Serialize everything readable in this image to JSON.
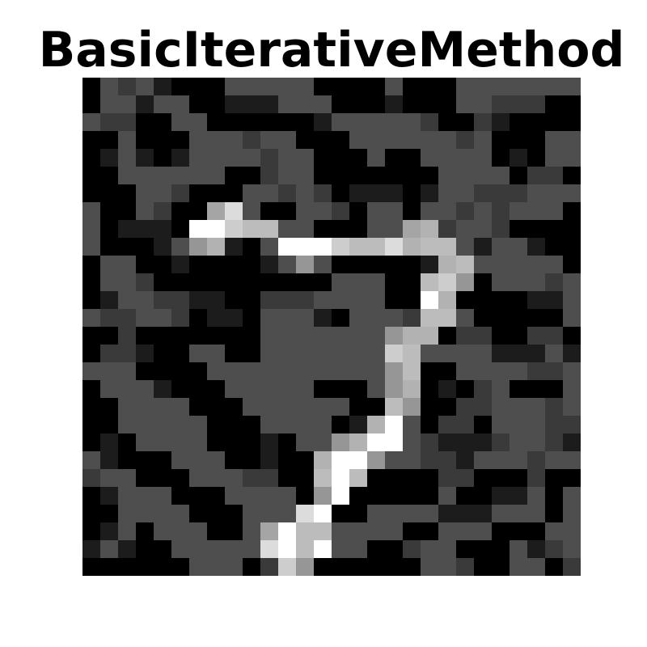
{
  "title": "BasicIterativeMethod",
  "image": {
    "rows": 28,
    "cols": 28,
    "pixels": [
      [
        0,
        4,
        3,
        4,
        1,
        0,
        0,
        0,
        4,
        4,
        4,
        4,
        4,
        0,
        0,
        0,
        0,
        4,
        0,
        0,
        0,
        4,
        4,
        4,
        4,
        4,
        4,
        4
      ],
      [
        0,
        4,
        4,
        1,
        4,
        4,
        0,
        0,
        1,
        1,
        1,
        4,
        4,
        4,
        0,
        0,
        0,
        1,
        0,
        0,
        0,
        4,
        4,
        3,
        3,
        3,
        0,
        0
      ],
      [
        4,
        3,
        3,
        0,
        0,
        4,
        4,
        0,
        0,
        0,
        0,
        0,
        0,
        1,
        4,
        4,
        4,
        4,
        4,
        3,
        0,
        0,
        3,
        1,
        0,
        0,
        0,
        0
      ],
      [
        0,
        0,
        4,
        0,
        0,
        0,
        4,
        4,
        4,
        3,
        4,
        4,
        0,
        0,
        0,
        4,
        4,
        4,
        4,
        4,
        4,
        3,
        4,
        0,
        0,
        0,
        4,
        4
      ],
      [
        0,
        1,
        4,
        1,
        0,
        1,
        4,
        4,
        4,
        4,
        3,
        4,
        4,
        0,
        0,
        0,
        4,
        0,
        0,
        4,
        4,
        4,
        4,
        0,
        1,
        0,
        4,
        4
      ],
      [
        0,
        0,
        4,
        4,
        4,
        4,
        4,
        4,
        0,
        0,
        3,
        4,
        4,
        0,
        0,
        0,
        0,
        0,
        0,
        0,
        4,
        4,
        4,
        4,
        0,
        3,
        3,
        0
      ],
      [
        0,
        0,
        0,
        4,
        4,
        3,
        0,
        0,
        0,
        4,
        4,
        3,
        4,
        3,
        0,
        1,
        1,
        1,
        0,
        1,
        4,
        4,
        3,
        3,
        3,
        4,
        4,
        4
      ],
      [
        4,
        0,
        0,
        4,
        3,
        0,
        0,
        9,
        13,
        4,
        0,
        0,
        4,
        4,
        3,
        0,
        4,
        4,
        0,
        4,
        4,
        3,
        4,
        3,
        4,
        4,
        4,
        0
      ],
      [
        4,
        0,
        1,
        1,
        1,
        0,
        15,
        15,
        12,
        11,
        11,
        4,
        4,
        0,
        0,
        0,
        4,
        4,
        9,
        10,
        3,
        4,
        4,
        3,
        0,
        0,
        0,
        0
      ],
      [
        4,
        0,
        0,
        0,
        1,
        4,
        8,
        10,
        1,
        0,
        4,
        15,
        15,
        15,
        12,
        11,
        11,
        13,
        10,
        11,
        11,
        4,
        1,
        4,
        4,
        1,
        0,
        0
      ],
      [
        0,
        4,
        4,
        0,
        0,
        1,
        0,
        0,
        0,
        0,
        1,
        4,
        8,
        4,
        0,
        0,
        0,
        0,
        0,
        1,
        10,
        11,
        4,
        4,
        4,
        4,
        4,
        0
      ],
      [
        0,
        4,
        4,
        3,
        0,
        0,
        0,
        0,
        0,
        0,
        0,
        0,
        0,
        0,
        4,
        4,
        4,
        0,
        0,
        11,
        12,
        8,
        0,
        4,
        4,
        4,
        3,
        4
      ],
      [
        0,
        1,
        4,
        4,
        3,
        3,
        1,
        1,
        0,
        0,
        3,
        3,
        3,
        4,
        4,
        4,
        4,
        0,
        0,
        15,
        10,
        0,
        0,
        0,
        0,
        1,
        1,
        4
      ],
      [
        4,
        3,
        3,
        4,
        4,
        3,
        0,
        1,
        1,
        0,
        4,
        4,
        4,
        1,
        0,
        4,
        4,
        4,
        3,
        11,
        11,
        4,
        0,
        0,
        0,
        0,
        0,
        4
      ],
      [
        0,
        0,
        3,
        0,
        0,
        0,
        0,
        0,
        0,
        0,
        4,
        4,
        4,
        4,
        4,
        4,
        4,
        8,
        10,
        10,
        0,
        3,
        3,
        0,
        0,
        3,
        3,
        0
      ],
      [
        0,
        3,
        3,
        1,
        0,
        0,
        4,
        4,
        0,
        0,
        4,
        4,
        4,
        4,
        4,
        4,
        4,
        12,
        11,
        4,
        4,
        4,
        4,
        1,
        1,
        1,
        4,
        1
      ],
      [
        4,
        4,
        4,
        0,
        0,
        0,
        0,
        4,
        4,
        4,
        4,
        4,
        4,
        4,
        4,
        4,
        4,
        8,
        11,
        0,
        0,
        4,
        4,
        4,
        4,
        3,
        3,
        4
      ],
      [
        0,
        4,
        4,
        4,
        1,
        0,
        0,
        0,
        4,
        4,
        4,
        4,
        4,
        0,
        0,
        0,
        4,
        8,
        10,
        0,
        1,
        0,
        3,
        4,
        0,
        0,
        0,
        4
      ],
      [
        0,
        0,
        4,
        4,
        4,
        4,
        0,
        0,
        0,
        4,
        4,
        4,
        4,
        4,
        4,
        0,
        0,
        11,
        8,
        0,
        0,
        3,
        3,
        4,
        4,
        4,
        3,
        4
      ],
      [
        0,
        0,
        4,
        4,
        4,
        4,
        4,
        0,
        0,
        0,
        4,
        4,
        4,
        4,
        0,
        1,
        10,
        15,
        4,
        0,
        3,
        3,
        0,
        4,
        4,
        4,
        3,
        3
      ],
      [
        0,
        1,
        0,
        4,
        4,
        4,
        4,
        0,
        0,
        0,
        1,
        0,
        4,
        4,
        8,
        10,
        15,
        15,
        4,
        3,
        1,
        1,
        1,
        3,
        4,
        4,
        3,
        1
      ],
      [
        4,
        1,
        0,
        0,
        0,
        4,
        4,
        4,
        0,
        0,
        1,
        0,
        0,
        10,
        15,
        15,
        8,
        4,
        4,
        3,
        3,
        1,
        4,
        4,
        4,
        3,
        4,
        4
      ],
      [
        3,
        4,
        4,
        0,
        0,
        0,
        4,
        4,
        4,
        3,
        3,
        0,
        0,
        11,
        15,
        11,
        0,
        0,
        0,
        0,
        3,
        3,
        0,
        0,
        0,
        3,
        0,
        0
      ],
      [
        0,
        1,
        4,
        4,
        4,
        0,
        0,
        0,
        4,
        4,
        4,
        4,
        0,
        8,
        15,
        0,
        0,
        0,
        0,
        0,
        4,
        0,
        0,
        1,
        1,
        4,
        0,
        4
      ],
      [
        0,
        0,
        4,
        4,
        4,
        4,
        0,
        0,
        0,
        4,
        4,
        4,
        13,
        15,
        0,
        0,
        4,
        4,
        4,
        4,
        1,
        1,
        1,
        4,
        4,
        4,
        0,
        4
      ],
      [
        0,
        1,
        4,
        0,
        4,
        4,
        4,
        0,
        0,
        4,
        9,
        15,
        11,
        11,
        4,
        4,
        4,
        4,
        0,
        0,
        4,
        4,
        4,
        0,
        0,
        0,
        4,
        4
      ],
      [
        1,
        4,
        1,
        0,
        0,
        4,
        4,
        4,
        4,
        4,
        13,
        15,
        11,
        15,
        4,
        4,
        0,
        0,
        3,
        4,
        4,
        0,
        0,
        0,
        4,
        1,
        3,
        4
      ],
      [
        0,
        0,
        0,
        0,
        0,
        0,
        4,
        4,
        4,
        0,
        3,
        12,
        8,
        0,
        0,
        0,
        0,
        0,
        0,
        4,
        4,
        3,
        0,
        0,
        4,
        4,
        0,
        3
      ]
    ]
  }
}
